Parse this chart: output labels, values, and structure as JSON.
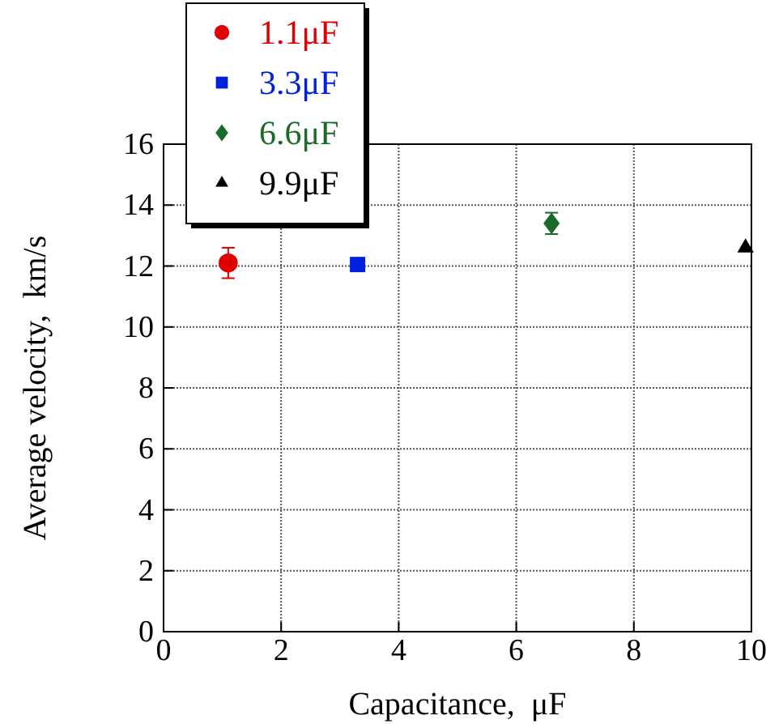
{
  "chart_data": {
    "type": "scatter",
    "xlabel": "Capacitance,  μF",
    "ylabel": "Average velocity,  km/s",
    "xlim": [
      0,
      10
    ],
    "xticks": [
      0,
      2,
      4,
      6,
      8,
      10
    ],
    "ylim": [
      0,
      16
    ],
    "yticks": [
      0,
      2,
      4,
      6,
      8,
      10,
      12,
      14,
      16
    ],
    "grid": true,
    "legend": "top left",
    "series": [
      {
        "name": "1.1μF",
        "color": "#e00000",
        "marker": "circle",
        "x": [
          1.1
        ],
        "values": [
          12.1
        ],
        "errors": [
          [
            11.6,
            12.6
          ]
        ]
      },
      {
        "name": "3.3μF",
        "color": "#0020e0",
        "marker": "square",
        "x": [
          3.3
        ],
        "values": [
          12.05
        ]
      },
      {
        "name": "6.6μF",
        "color": "#1a6a2a",
        "marker": "diamond",
        "x": [
          6.6
        ],
        "values": [
          13.4
        ],
        "errors": [
          [
            13.05,
            13.75
          ]
        ]
      },
      {
        "name": "9.9μF",
        "color": "#000000",
        "marker": "triangle",
        "x": [
          9.9
        ],
        "values": [
          12.6
        ]
      }
    ]
  }
}
